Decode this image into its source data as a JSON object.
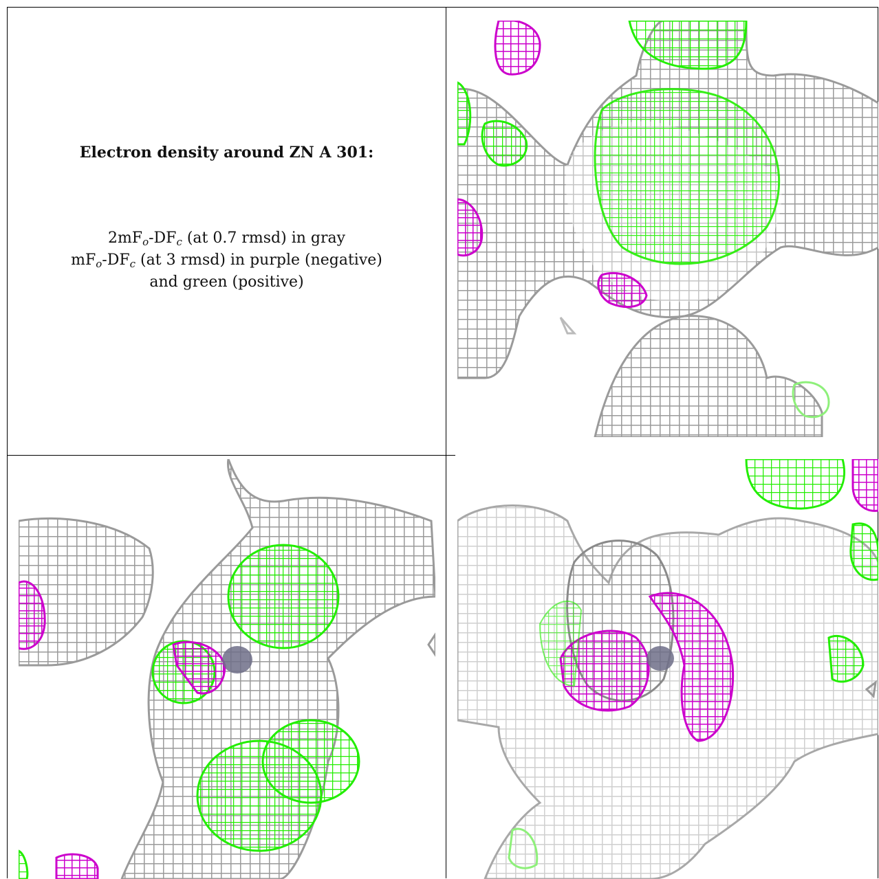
{
  "caption": {
    "title": "Electron density around ZN A 301:",
    "line1": {
      "pre": "2mF",
      "sub1": "o",
      "mid": "-DF",
      "sub2": "c",
      "post": " (at 0.7 rmsd) in gray"
    },
    "line2": {
      "pre": "mF",
      "sub1": "o",
      "mid": "-DF",
      "sub2": "c",
      "post": " (at 3 rmsd) in purple (negative)"
    },
    "line3": "and green (positive)"
  },
  "panels": [
    {
      "name": "view-top-right"
    },
    {
      "name": "view-bottom-left"
    },
    {
      "name": "view-bottom-right"
    }
  ],
  "colors": {
    "gray_mesh": "#9a9a9a",
    "gray_mesh_light": "#c8c8c8",
    "negative": "#cc00cc",
    "positive": "#22ee00",
    "zinc": "#6f6f88"
  }
}
